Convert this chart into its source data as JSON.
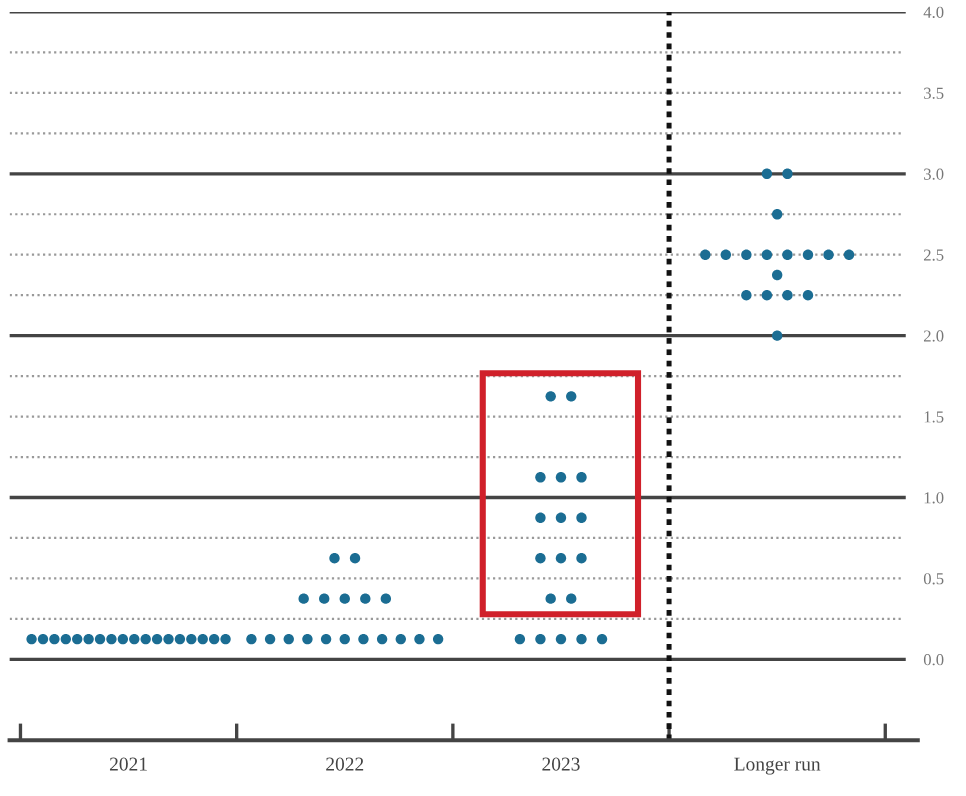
{
  "chart_data": {
    "type": "scatter",
    "categories": [
      "2021",
      "2022",
      "2023",
      "Longer run"
    ],
    "series": [
      {
        "color": "#1b6d93",
        "values": [
          0.125,
          0.125,
          0.125,
          2.0
        ]
      },
      {
        "color": "#1b6d93",
        "values": [
          0.125,
          0.125,
          0.125,
          2.25
        ]
      },
      {
        "color": "#1b6d93",
        "values": [
          0.125,
          0.125,
          0.125,
          2.25
        ]
      },
      {
        "color": "#1b6d93",
        "values": [
          0.125,
          0.125,
          0.125,
          2.25
        ]
      },
      {
        "color": "#1b6d93",
        "values": [
          0.125,
          0.125,
          0.125,
          2.25
        ]
      },
      {
        "color": "#1b6d93",
        "values": [
          0.125,
          0.125,
          0.375,
          2.375
        ]
      },
      {
        "color": "#1b6d93",
        "values": [
          0.125,
          0.125,
          0.375,
          2.5
        ]
      },
      {
        "color": "#1b6d93",
        "values": [
          0.125,
          0.125,
          0.625,
          2.5
        ]
      },
      {
        "color": "#1b6d93",
        "values": [
          0.125,
          0.125,
          0.625,
          2.5
        ]
      },
      {
        "color": "#1b6d93",
        "values": [
          0.125,
          0.125,
          0.625,
          2.5
        ]
      },
      {
        "color": "#1b6d93",
        "values": [
          0.125,
          0.125,
          0.875,
          2.5
        ]
      },
      {
        "color": "#1b6d93",
        "values": [
          0.125,
          0.375,
          0.875,
          2.5
        ]
      },
      {
        "color": "#1b6d93",
        "values": [
          0.125,
          0.375,
          0.875,
          2.5
        ]
      },
      {
        "color": "#1b6d93",
        "values": [
          0.125,
          0.375,
          1.125,
          2.5
        ]
      },
      {
        "color": "#1b6d93",
        "values": [
          0.125,
          0.375,
          1.125,
          2.75
        ]
      },
      {
        "color": "#1b6d93",
        "values": [
          0.125,
          0.375,
          1.125,
          3.0
        ]
      },
      {
        "color": "#1b6d93",
        "values": [
          0.125,
          0.625,
          1.625,
          3.0
        ]
      },
      {
        "color": "#1b6d93",
        "values": [
          0.125,
          0.625,
          1.625,
          null
        ]
      }
    ],
    "ylim": [
      -0.5,
      4.0
    ],
    "yticks": [
      {
        "value": 0,
        "label": "0.0"
      },
      {
        "value": 0.25,
        "label": null
      },
      {
        "value": 0.5,
        "label": "0.5"
      },
      {
        "value": 0.75,
        "label": null
      },
      {
        "value": 1.0,
        "label": "1.0"
      },
      {
        "value": 1.25,
        "label": null
      },
      {
        "value": 1.5,
        "label": "1.5"
      },
      {
        "value": 1.75,
        "label": null
      },
      {
        "value": 2.0,
        "label": "2.0"
      },
      {
        "value": 2.25,
        "label": null
      },
      {
        "value": 2.5,
        "label": "2.5"
      },
      {
        "value": 2.75,
        "label": null
      },
      {
        "value": 3.0,
        "label": "3.0"
      },
      {
        "value": 3.25,
        "label": null
      },
      {
        "value": 3.5,
        "label": "3.5"
      },
      {
        "value": 3.75,
        "label": null
      },
      {
        "value": 4.0,
        "label": "4.0"
      }
    ],
    "grid": "y",
    "marker": "circle"
  }
}
